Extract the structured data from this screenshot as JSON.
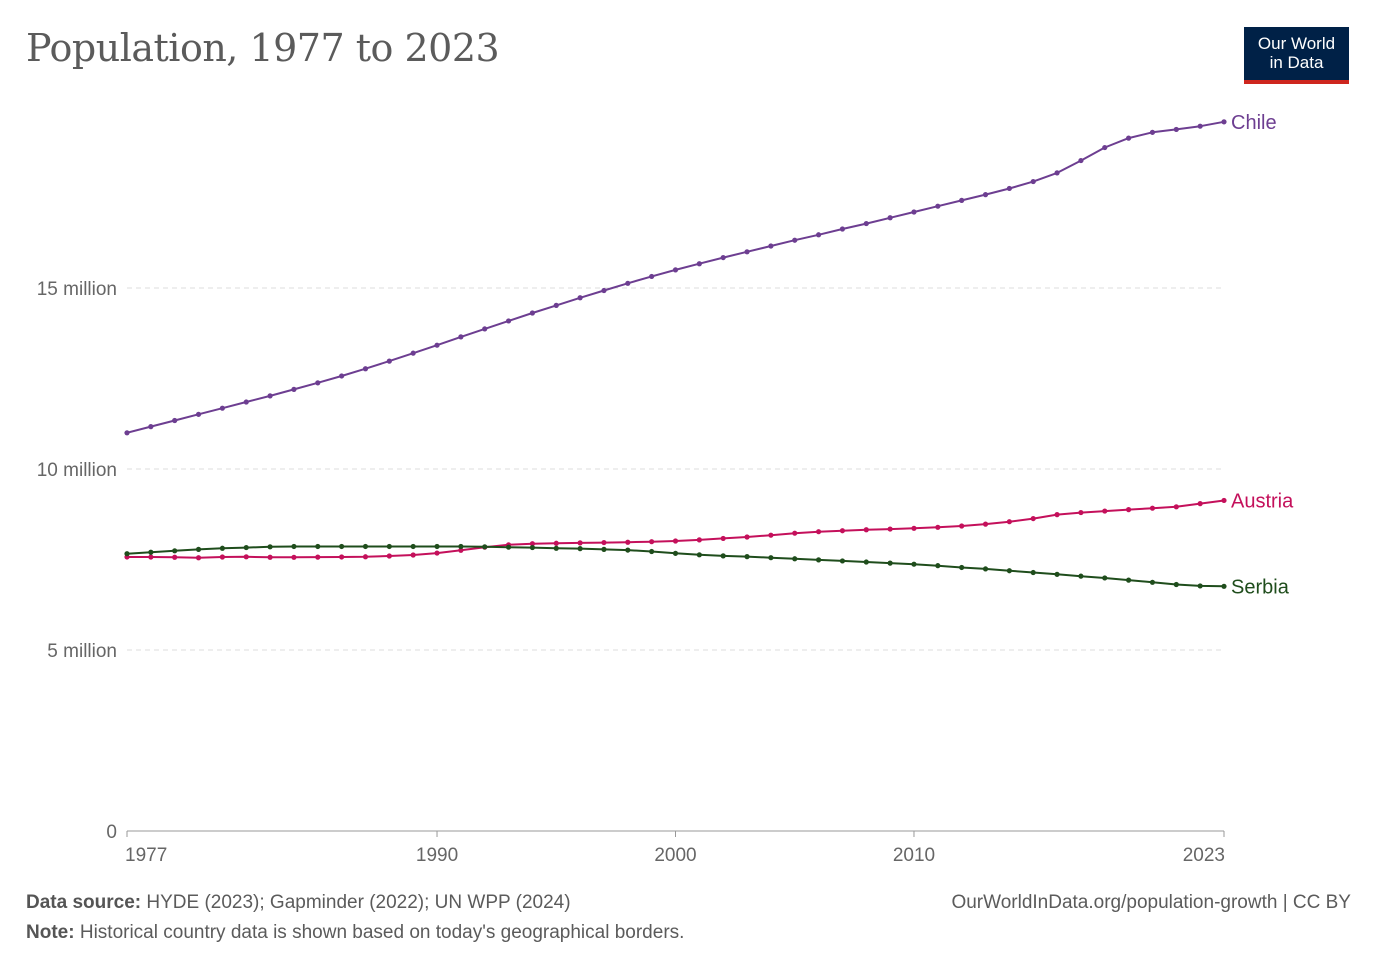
{
  "title": "Population, 1977 to 2023",
  "logo": {
    "line1": "Our World",
    "line2": "in Data"
  },
  "footer": {
    "source_label": "Data source:",
    "source_text": "HYDE (2023); Gapminder (2022); UN WPP (2024)",
    "note_label": "Note:",
    "note_text": "Historical country data is shown based on today's geographical borders.",
    "url": "OurWorldInData.org/population-growth | CC BY"
  },
  "chart_data": {
    "type": "line",
    "title": "Population, 1977 to 2023",
    "x": [
      1977,
      1978,
      1979,
      1980,
      1981,
      1982,
      1983,
      1984,
      1985,
      1986,
      1987,
      1988,
      1989,
      1990,
      1991,
      1992,
      1993,
      1994,
      1995,
      1996,
      1997,
      1998,
      1999,
      2000,
      2001,
      2002,
      2003,
      2004,
      2005,
      2006,
      2007,
      2008,
      2009,
      2010,
      2011,
      2012,
      2013,
      2014,
      2015,
      2016,
      2017,
      2018,
      2019,
      2020,
      2021,
      2022,
      2023
    ],
    "xticks": [
      1977,
      1990,
      2000,
      2010,
      2023
    ],
    "yticks": [
      0,
      5000000,
      10000000,
      15000000
    ],
    "ytick_labels": [
      "0",
      "5 million",
      "10 million",
      "15 million"
    ],
    "ylim": [
      0,
      20000000
    ],
    "grid": true,
    "series": [
      {
        "name": "Chile",
        "color": "#6d3e91",
        "values": [
          11000000,
          11170000,
          11340000,
          11510000,
          11680000,
          11850000,
          12020000,
          12200000,
          12380000,
          12570000,
          12770000,
          12980000,
          13200000,
          13420000,
          13650000,
          13870000,
          14090000,
          14310000,
          14520000,
          14730000,
          14930000,
          15130000,
          15320000,
          15500000,
          15670000,
          15840000,
          16000000,
          16160000,
          16320000,
          16470000,
          16630000,
          16780000,
          16940000,
          17100000,
          17260000,
          17420000,
          17580000,
          17750000,
          17940000,
          18180000,
          18520000,
          18880000,
          19140000,
          19300000,
          19380000,
          19470000,
          19590000
        ]
      },
      {
        "name": "Austria",
        "color": "#c4105b",
        "values": [
          7570000,
          7568000,
          7562000,
          7549000,
          7569000,
          7574000,
          7562000,
          7561000,
          7565000,
          7570000,
          7575000,
          7596000,
          7624000,
          7678000,
          7755000,
          7840000,
          7906000,
          7936000,
          7948000,
          7959000,
          7968000,
          7977000,
          7992000,
          8011000,
          8042000,
          8082000,
          8121000,
          8172000,
          8227000,
          8268000,
          8295000,
          8322000,
          8341000,
          8361000,
          8389000,
          8426000,
          8477000,
          8544000,
          8630000,
          8740000,
          8796000,
          8838000,
          8878000,
          8917000,
          8955000,
          9043000,
          9131000
        ]
      },
      {
        "name": "Serbia",
        "color": "#1f4d1c",
        "values": [
          7660000,
          7700000,
          7740000,
          7780000,
          7810000,
          7830000,
          7850000,
          7860000,
          7860000,
          7860000,
          7860000,
          7860000,
          7860000,
          7860000,
          7860000,
          7850000,
          7840000,
          7830000,
          7810000,
          7800000,
          7780000,
          7760000,
          7720000,
          7670000,
          7630000,
          7600000,
          7580000,
          7550000,
          7520000,
          7490000,
          7460000,
          7430000,
          7400000,
          7370000,
          7330000,
          7280000,
          7240000,
          7190000,
          7140000,
          7090000,
          7040000,
          6990000,
          6930000,
          6870000,
          6810000,
          6770000,
          6760000
        ]
      }
    ]
  }
}
